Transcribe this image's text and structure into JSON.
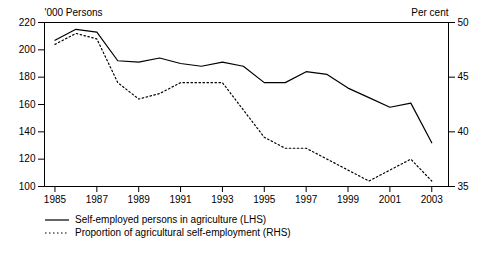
{
  "chart_data": {
    "type": "line",
    "x": [
      1985,
      1986,
      1987,
      1988,
      1989,
      1990,
      1991,
      1992,
      1993,
      1994,
      1995,
      1996,
      1997,
      1998,
      1999,
      2000,
      2001,
      2002,
      2003
    ],
    "xlim": [
      1984.5,
      2003.8
    ],
    "xticks": [
      1985,
      1987,
      1989,
      1991,
      1993,
      1995,
      1997,
      1999,
      2001,
      2003
    ],
    "ylim": [
      100,
      220
    ],
    "yticks": [
      100,
      120,
      140,
      160,
      180,
      200,
      220
    ],
    "y2lim": [
      35,
      50
    ],
    "y2ticks": [
      35,
      40,
      45,
      50
    ],
    "ylabel": "'000 Persons",
    "y2label": "Per cent",
    "grid": false,
    "legend": "lower left",
    "series": [
      {
        "name": "Self-employed persons in agriculture (LHS)",
        "color": "#000000",
        "line_style": "solid",
        "values": [
          207,
          215,
          213,
          192,
          191,
          194,
          190,
          188,
          191,
          188,
          176,
          176,
          184,
          182,
          172,
          165,
          158,
          161,
          132
        ]
      },
      {
        "name": "Proportion of agricultural self-employment (RHS)",
        "color": "#000000",
        "line_style": "dotted",
        "axis": "y2",
        "values": [
          48.0,
          49.0,
          48.5,
          44.5,
          43.0,
          43.5,
          44.5,
          44.5,
          44.5,
          42.0,
          39.5,
          38.5,
          38.5,
          37.5,
          36.5,
          35.5,
          36.5,
          37.5,
          35.5
        ]
      }
    ]
  }
}
